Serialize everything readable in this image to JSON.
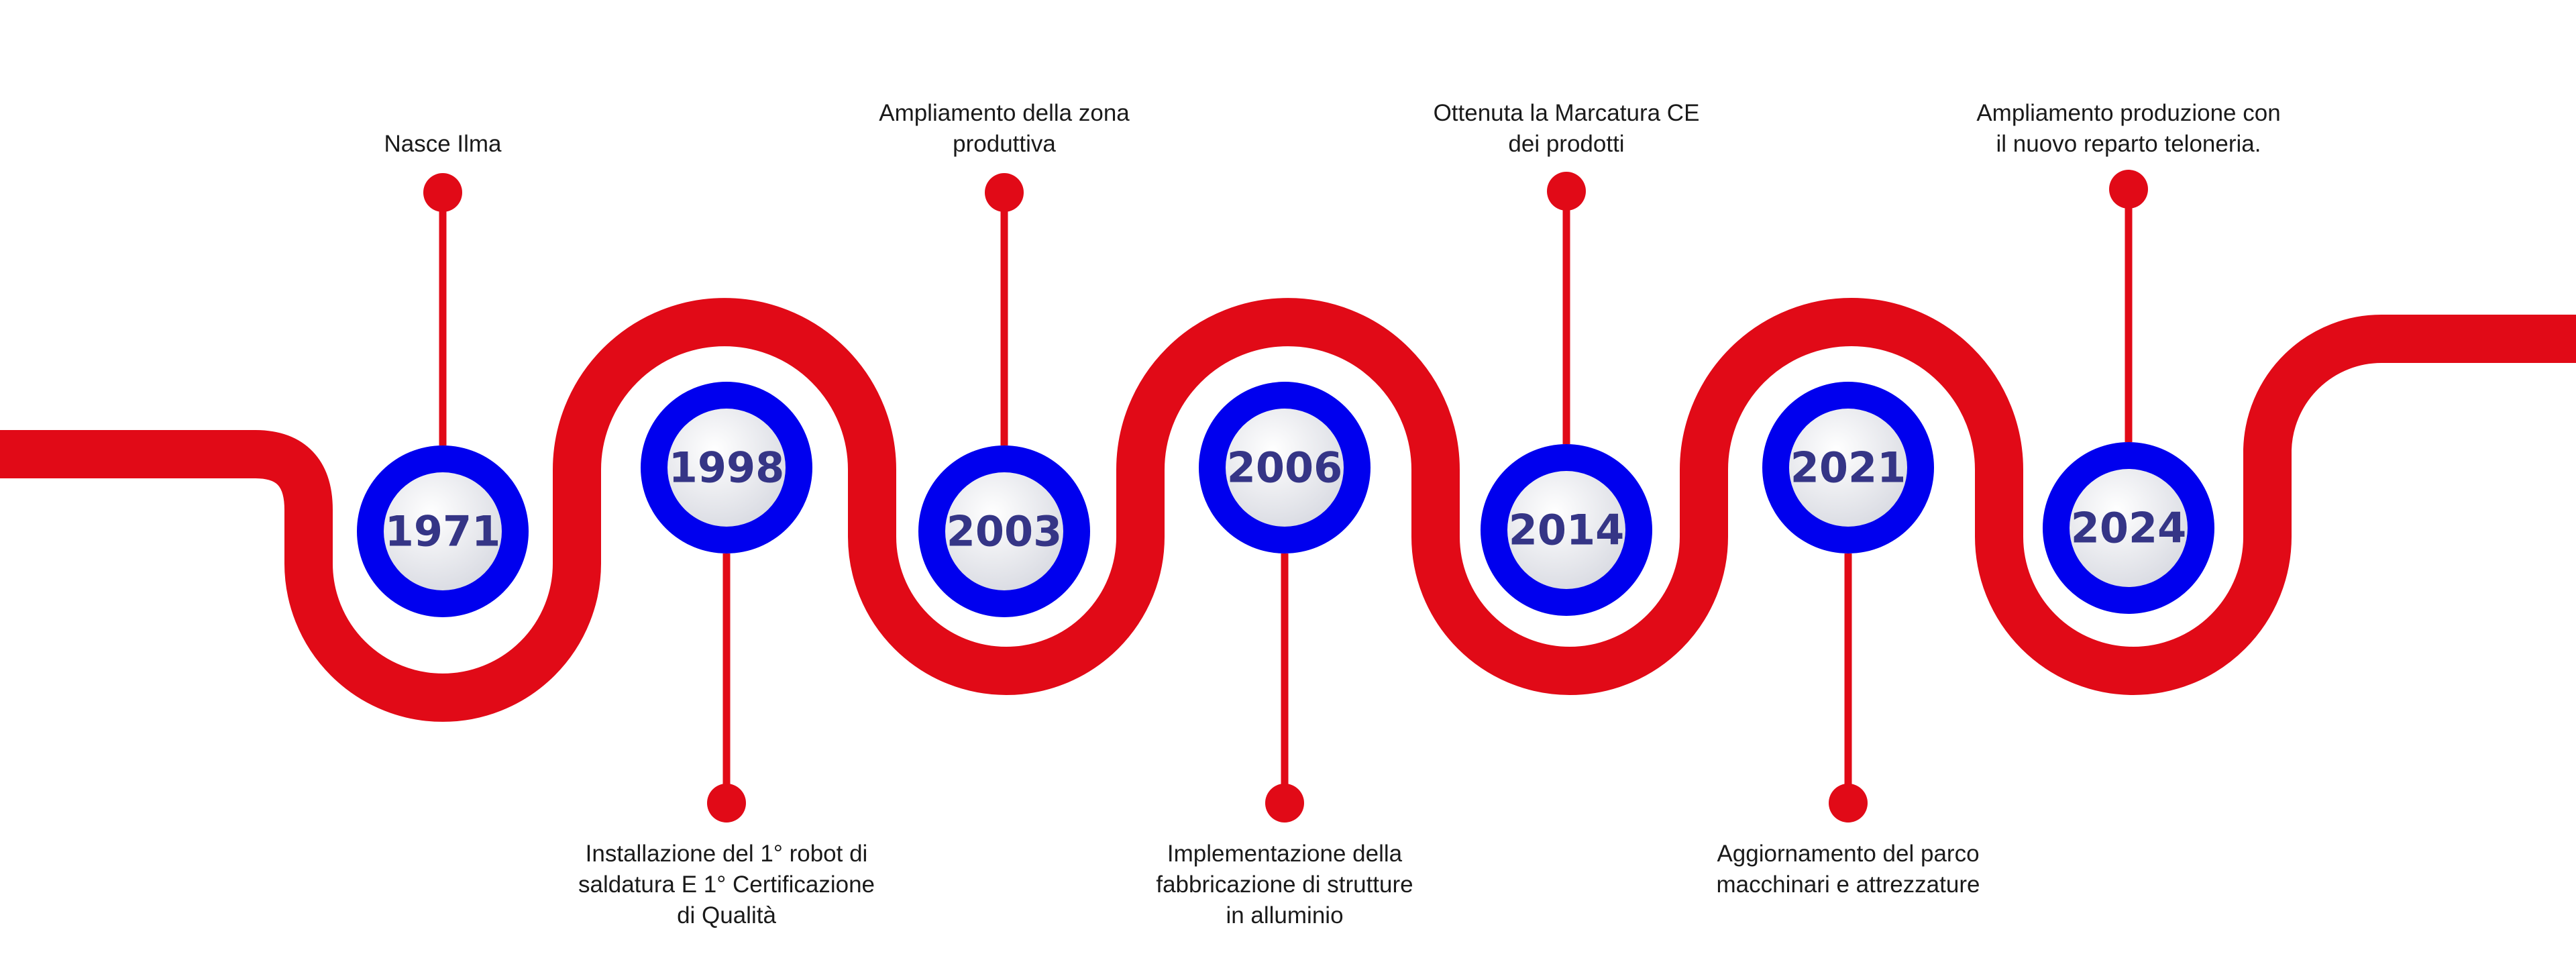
{
  "colors": {
    "road": "#e10a17",
    "ring": "#0000ee",
    "connector": "#e10a17",
    "year_text": "#353586",
    "label_text": "#1a1a1a",
    "disc_light": "#ffffff",
    "disc_dark": "#d6d8e0"
  },
  "milestones": [
    {
      "year": "1971",
      "label": "Nasce Ilma",
      "side": "above"
    },
    {
      "year": "1998",
      "label": "Installazione del 1° robot di\nsaldatura E 1° Certificazione\ndi Qualità",
      "side": "below"
    },
    {
      "year": "2003",
      "label": "Ampliamento della zona\nproduttiva",
      "side": "above"
    },
    {
      "year": "2006",
      "label": "Implementazione della\nfabbricazione di strutture\nin alluminio",
      "side": "below"
    },
    {
      "year": "2014",
      "label": "Ottenuta la Marcatura CE\ndei prodotti",
      "side": "above"
    },
    {
      "year": "2021",
      "label": "Aggiornamento del parco\nmacchinari e attrezzature",
      "side": "below"
    },
    {
      "year": "2024",
      "label": "Ampliamento produzione con\nil nuovo reparto teloneria.",
      "side": "above"
    }
  ]
}
